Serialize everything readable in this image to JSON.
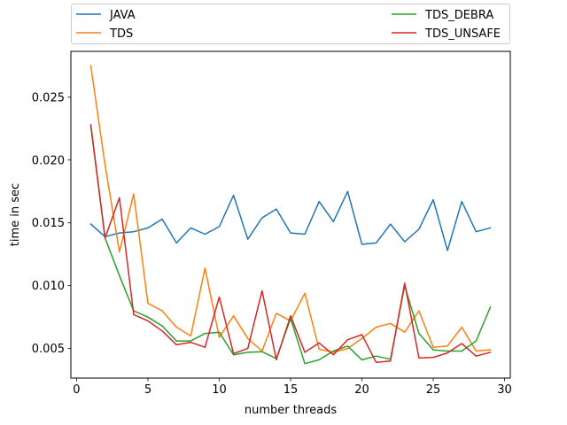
{
  "chart_data": {
    "type": "line",
    "title": "",
    "xlabel": "number threads",
    "ylabel": "time in sec",
    "xlim": [
      -0.4,
      30.4
    ],
    "ylim": [
      0.00265,
      0.02865
    ],
    "xticks": [
      0,
      5,
      10,
      15,
      20,
      25,
      30
    ],
    "yticks": [
      0.005,
      0.01,
      0.015,
      0.02,
      0.025
    ],
    "ytick_labels": [
      "0.005",
      "0.010",
      "0.015",
      "0.020",
      "0.025"
    ],
    "grid": false,
    "legend_placement": "above plot, two columns",
    "x": [
      1,
      2,
      3,
      4,
      5,
      6,
      7,
      8,
      9,
      10,
      11,
      12,
      13,
      14,
      15,
      16,
      17,
      18,
      19,
      20,
      21,
      22,
      23,
      24,
      25,
      26,
      27,
      28,
      29
    ],
    "series": [
      {
        "name": "JAVA",
        "color": "#1f77b4",
        "values": [
          0.0149,
          0.0139,
          0.0142,
          0.0143,
          0.0146,
          0.0153,
          0.0134,
          0.0146,
          0.0141,
          0.0147,
          0.0172,
          0.0137,
          0.0154,
          0.0161,
          0.0142,
          0.0141,
          0.0167,
          0.0151,
          0.0175,
          0.0133,
          0.0134,
          0.0149,
          0.0135,
          0.0145,
          0.01685,
          0.0128,
          0.0167,
          0.0143,
          0.0146
        ]
      },
      {
        "name": "TDS",
        "color": "#ff7f0e",
        "values": [
          0.0275,
          0.0196,
          0.0127,
          0.0173,
          0.0086,
          0.008,
          0.0067,
          0.006,
          0.0114,
          0.0059,
          0.0076,
          0.0058,
          0.0048,
          0.0078,
          0.0072,
          0.0094,
          0.00495,
          0.0047,
          0.005,
          0.0058,
          0.0067,
          0.007,
          0.0063,
          0.008,
          0.0051,
          0.0052,
          0.0067,
          0.0048,
          0.0049
        ]
      },
      {
        "name": "TDS_DEBRA",
        "color": "#2ca02c",
        "values": [
          0.0227,
          0.0138,
          0.0108,
          0.008,
          0.0075,
          0.0068,
          0.0056,
          0.0056,
          0.0062,
          0.0063,
          0.0045,
          0.0047,
          0.00475,
          0.0042,
          0.0074,
          0.0038,
          0.0041,
          0.0048,
          0.0052,
          0.0041,
          0.0044,
          0.00415,
          0.01,
          0.0062,
          0.0049,
          0.0048,
          0.0048,
          0.0056,
          0.0083
        ]
      },
      {
        "name": "TDS_UNSAFE",
        "color": "#d62728",
        "values": [
          0.0228,
          0.0138,
          0.017,
          0.0077,
          0.0072,
          0.0064,
          0.0053,
          0.0055,
          0.0051,
          0.0091,
          0.0046,
          0.005,
          0.0096,
          0.0041,
          0.0076,
          0.0047,
          0.00545,
          0.0045,
          0.0057,
          0.0061,
          0.0039,
          0.004,
          0.0102,
          0.00425,
          0.0043,
          0.00465,
          0.0054,
          0.0044,
          0.0047
        ]
      }
    ]
  }
}
